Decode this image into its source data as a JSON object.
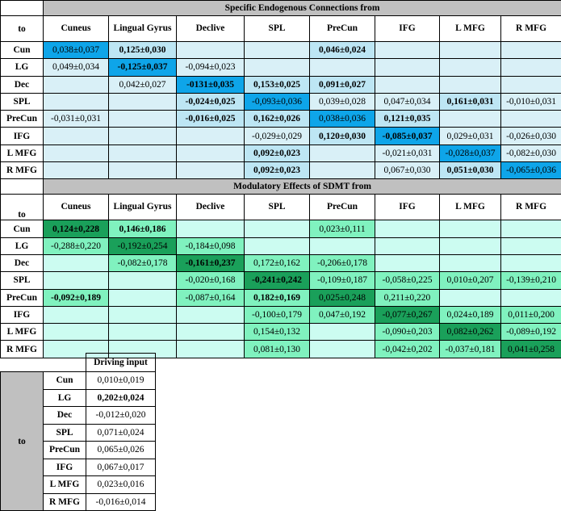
{
  "columns": [
    "Cuneus",
    "Lingual Gyrus",
    "Declive",
    "SPL",
    "PreCun",
    "IFG",
    "L MFG",
    "R MFG"
  ],
  "rows": [
    "Cun",
    "LG",
    "Dec",
    "SPL",
    "PreCun",
    "IFG",
    "L MFG",
    "R MFG"
  ],
  "to_label": "to",
  "endogenous": {
    "title": "Specific Endogenous Connections from",
    "cells": [
      [
        {
          "v": "0,038±0,037",
          "b": false,
          "c": "#0ea5e9"
        },
        {
          "v": "0,125±0,030",
          "b": true,
          "c": "#bde6f4"
        },
        {
          "v": "",
          "b": false,
          "c": "#d9f0f7"
        },
        {
          "v": "",
          "b": false,
          "c": "#d9f0f7"
        },
        {
          "v": "0,046±0,024",
          "b": true,
          "c": "#bde6f4"
        },
        {
          "v": "",
          "b": false,
          "c": "#d9f0f7"
        },
        {
          "v": "",
          "b": false,
          "c": "#d9f0f7"
        },
        {
          "v": "",
          "b": false,
          "c": "#d9f0f7"
        }
      ],
      [
        {
          "v": "0,049±0,034",
          "b": false,
          "c": "#d9f0f7"
        },
        {
          "v": "-0,125±0,037",
          "b": true,
          "c": "#0ea5e9"
        },
        {
          "v": "-0,094±0,023",
          "b": false,
          "c": "#d9f0f7"
        },
        {
          "v": "",
          "b": false,
          "c": "#d9f0f7"
        },
        {
          "v": "",
          "b": false,
          "c": "#d9f0f7"
        },
        {
          "v": "",
          "b": false,
          "c": "#d9f0f7"
        },
        {
          "v": "",
          "b": false,
          "c": "#d9f0f7"
        },
        {
          "v": "",
          "b": false,
          "c": "#d9f0f7"
        }
      ],
      [
        {
          "v": "",
          "b": false,
          "c": "#d9f0f7"
        },
        {
          "v": "0,042±0,027",
          "b": false,
          "c": "#d9f0f7"
        },
        {
          "v": "-0131±0,035",
          "b": true,
          "c": "#0ea5e9"
        },
        {
          "v": "0,153±0,025",
          "b": true,
          "c": "#bde6f4"
        },
        {
          "v": "0,091±0,027",
          "b": true,
          "c": "#bde6f4"
        },
        {
          "v": "",
          "b": false,
          "c": "#d9f0f7"
        },
        {
          "v": "",
          "b": false,
          "c": "#d9f0f7"
        },
        {
          "v": "",
          "b": false,
          "c": "#d9f0f7"
        }
      ],
      [
        {
          "v": "",
          "b": false,
          "c": "#d9f0f7"
        },
        {
          "v": "",
          "b": false,
          "c": "#d9f0f7"
        },
        {
          "v": "-0,024±0,025",
          "b": true,
          "c": "#bde6f4"
        },
        {
          "v": "-0,093±0,036",
          "b": false,
          "c": "#0ea5e9"
        },
        {
          "v": "0,039±0,028",
          "b": false,
          "c": "#d9f0f7"
        },
        {
          "v": "0,047±0,034",
          "b": false,
          "c": "#d9f0f7"
        },
        {
          "v": "0,161±0,031",
          "b": true,
          "c": "#bde6f4"
        },
        {
          "v": "-0,010±0,031",
          "b": false,
          "c": "#d9f0f7"
        }
      ],
      [
        {
          "v": "-0,031±0,031",
          "b": false,
          "c": "#d9f0f7"
        },
        {
          "v": "",
          "b": false,
          "c": "#d9f0f7"
        },
        {
          "v": "-0,016±0,025",
          "b": true,
          "c": "#bde6f4"
        },
        {
          "v": "0,162±0,026",
          "b": true,
          "c": "#bde6f4"
        },
        {
          "v": "0,038±0,036",
          "b": false,
          "c": "#0ea5e9"
        },
        {
          "v": "0,121±0,035",
          "b": true,
          "c": "#bde6f4"
        },
        {
          "v": "",
          "b": false,
          "c": "#d9f0f7"
        },
        {
          "v": "",
          "b": false,
          "c": "#d9f0f7"
        }
      ],
      [
        {
          "v": "",
          "b": false,
          "c": "#d9f0f7"
        },
        {
          "v": "",
          "b": false,
          "c": "#d9f0f7"
        },
        {
          "v": "",
          "b": false,
          "c": "#d9f0f7"
        },
        {
          "v": "-0,029±0,029",
          "b": false,
          "c": "#d9f0f7"
        },
        {
          "v": "0,120±0,030",
          "b": true,
          "c": "#bde6f4"
        },
        {
          "v": "-0,085±0,037",
          "b": true,
          "c": "#0ea5e9"
        },
        {
          "v": "0,029±0,031",
          "b": false,
          "c": "#d9f0f7"
        },
        {
          "v": "-0,026±0,030",
          "b": false,
          "c": "#d9f0f7"
        }
      ],
      [
        {
          "v": "",
          "b": false,
          "c": "#d9f0f7"
        },
        {
          "v": "",
          "b": false,
          "c": "#d9f0f7"
        },
        {
          "v": "",
          "b": false,
          "c": "#d9f0f7"
        },
        {
          "v": "0,092±0,023",
          "b": true,
          "c": "#bde6f4"
        },
        {
          "v": "",
          "b": false,
          "c": "#d9f0f7"
        },
        {
          "v": "-0,021±0,031",
          "b": false,
          "c": "#d9f0f7"
        },
        {
          "v": "-0,028±0,037",
          "b": false,
          "c": "#0ea5e9"
        },
        {
          "v": "-0,082±0,030",
          "b": false,
          "c": "#d9f0f7"
        }
      ],
      [
        {
          "v": "",
          "b": false,
          "c": "#d9f0f7"
        },
        {
          "v": "",
          "b": false,
          "c": "#d9f0f7"
        },
        {
          "v": "",
          "b": false,
          "c": "#d9f0f7"
        },
        {
          "v": "0,092±0,023",
          "b": true,
          "c": "#bde6f4"
        },
        {
          "v": "",
          "b": false,
          "c": "#d9f0f7"
        },
        {
          "v": "0,067±0,030",
          "b": false,
          "c": "#d9f0f7"
        },
        {
          "v": "0,051±0,030",
          "b": true,
          "c": "#bde6f4"
        },
        {
          "v": "-0,065±0,036",
          "b": false,
          "c": "#0ea5e9"
        }
      ]
    ]
  },
  "modulatory": {
    "title": "Modulatory Effects of SDMT from",
    "cells": [
      [
        {
          "v": "0,124±0,228",
          "b": true,
          "c": "#1aa05a"
        },
        {
          "v": "0,146±0,186",
          "b": true,
          "c": "#80f2bf"
        },
        {
          "v": "",
          "b": false,
          "c": "#ccfcf1"
        },
        {
          "v": "",
          "b": false,
          "c": "#ccfcf1"
        },
        {
          "v": "0,023±0,111",
          "b": false,
          "c": "#80f2bf"
        },
        {
          "v": "",
          "b": false,
          "c": "#ccfcf1"
        },
        {
          "v": "",
          "b": false,
          "c": "#ccfcf1"
        },
        {
          "v": "",
          "b": false,
          "c": "#ccfcf1"
        }
      ],
      [
        {
          "v": "-0,288±0,220",
          "b": false,
          "c": "#80f2bf"
        },
        {
          "v": "-0,192±0,254",
          "b": false,
          "c": "#1aa05a"
        },
        {
          "v": "-0,184±0,098",
          "b": false,
          "c": "#80f2bf"
        },
        {
          "v": "",
          "b": false,
          "c": "#ccfcf1"
        },
        {
          "v": "",
          "b": false,
          "c": "#ccfcf1"
        },
        {
          "v": "",
          "b": false,
          "c": "#ccfcf1"
        },
        {
          "v": "",
          "b": false,
          "c": "#ccfcf1"
        },
        {
          "v": "",
          "b": false,
          "c": "#ccfcf1"
        }
      ],
      [
        {
          "v": "",
          "b": false,
          "c": "#ccfcf1"
        },
        {
          "v": "-0,082±0,178",
          "b": false,
          "c": "#80f2bf"
        },
        {
          "v": "-0,161±0,237",
          "b": true,
          "c": "#1aa05a"
        },
        {
          "v": "0,172±0,162",
          "b": false,
          "c": "#80f2bf"
        },
        {
          "v": "-0,206±0,178",
          "b": false,
          "c": "#80f2bf"
        },
        {
          "v": "",
          "b": false,
          "c": "#ccfcf1"
        },
        {
          "v": "",
          "b": false,
          "c": "#ccfcf1"
        },
        {
          "v": "",
          "b": false,
          "c": "#ccfcf1"
        }
      ],
      [
        {
          "v": "",
          "b": false,
          "c": "#ccfcf1"
        },
        {
          "v": "",
          "b": false,
          "c": "#ccfcf1"
        },
        {
          "v": "-0,020±0,168",
          "b": false,
          "c": "#80f2bf"
        },
        {
          "v": "-0,241±0,242",
          "b": true,
          "c": "#1aa05a"
        },
        {
          "v": "-0,109±0,187",
          "b": false,
          "c": "#80f2bf"
        },
        {
          "v": "-0,058±0,225",
          "b": false,
          "c": "#80f2bf"
        },
        {
          "v": "0,010±0,207",
          "b": false,
          "c": "#80f2bf"
        },
        {
          "v": "-0,139±0,210",
          "b": false,
          "c": "#80f2bf"
        }
      ],
      [
        {
          "v": "-0,092±0,189",
          "b": true,
          "c": "#80f2bf"
        },
        {
          "v": "",
          "b": false,
          "c": "#ccfcf1"
        },
        {
          "v": "-0,087±0,164",
          "b": false,
          "c": "#80f2bf"
        },
        {
          "v": "0,182±0,169",
          "b": true,
          "c": "#80f2bf"
        },
        {
          "v": "0,025±0,248",
          "b": false,
          "c": "#1aa05a"
        },
        {
          "v": "0,211±0,220",
          "b": false,
          "c": "#80f2bf"
        },
        {
          "v": "",
          "b": false,
          "c": "#ccfcf1"
        },
        {
          "v": "",
          "b": false,
          "c": "#ccfcf1"
        }
      ],
      [
        {
          "v": "",
          "b": false,
          "c": "#ccfcf1"
        },
        {
          "v": "",
          "b": false,
          "c": "#ccfcf1"
        },
        {
          "v": "",
          "b": false,
          "c": "#ccfcf1"
        },
        {
          "v": "-0,100±0,179",
          "b": false,
          "c": "#80f2bf"
        },
        {
          "v": "0,047±0,192",
          "b": false,
          "c": "#80f2bf"
        },
        {
          "v": "-0,077±0,267",
          "b": false,
          "c": "#1aa05a"
        },
        {
          "v": "0,024±0,189",
          "b": false,
          "c": "#80f2bf"
        },
        {
          "v": "0,011±0,200",
          "b": false,
          "c": "#80f2bf"
        }
      ],
      [
        {
          "v": "",
          "b": false,
          "c": "#ccfcf1"
        },
        {
          "v": "",
          "b": false,
          "c": "#ccfcf1"
        },
        {
          "v": "",
          "b": false,
          "c": "#ccfcf1"
        },
        {
          "v": "0,154±0,132",
          "b": false,
          "c": "#80f2bf"
        },
        {
          "v": "",
          "b": false,
          "c": "#ccfcf1"
        },
        {
          "v": "-0,090±0,203",
          "b": false,
          "c": "#80f2bf"
        },
        {
          "v": "0,082±0,262",
          "b": false,
          "c": "#1aa05a"
        },
        {
          "v": "-0,089±0,192",
          "b": false,
          "c": "#80f2bf"
        }
      ],
      [
        {
          "v": "",
          "b": false,
          "c": "#ccfcf1"
        },
        {
          "v": "",
          "b": false,
          "c": "#ccfcf1"
        },
        {
          "v": "",
          "b": false,
          "c": "#ccfcf1"
        },
        {
          "v": "0,081±0,130",
          "b": false,
          "c": "#80f2bf"
        },
        {
          "v": "",
          "b": false,
          "c": "#ccfcf1"
        },
        {
          "v": "-0,042±0,202",
          "b": false,
          "c": "#80f2bf"
        },
        {
          "v": "-0,037±0,181",
          "b": false,
          "c": "#80f2bf"
        },
        {
          "v": "0,041±0,258",
          "b": false,
          "c": "#1aa05a"
        }
      ]
    ]
  },
  "driving": {
    "title": "Driving input",
    "to_label": "to",
    "rows": [
      {
        "label": "Cun",
        "value": "0,010±0,019",
        "b": false
      },
      {
        "label": "LG",
        "value": "0,202±0,024",
        "b": true
      },
      {
        "label": "Dec",
        "value": "-0,012±0,020",
        "b": false
      },
      {
        "label": "SPL",
        "value": "0,071±0,024",
        "b": false
      },
      {
        "label": "PreCun",
        "value": "0,065±0,026",
        "b": false
      },
      {
        "label": "IFG",
        "value": "0,067±0,017",
        "b": false
      },
      {
        "label": "L MFG",
        "value": "0,023±0,016",
        "b": false
      },
      {
        "label": "R MFG",
        "value": "-0,016±0,014",
        "b": false
      }
    ]
  }
}
